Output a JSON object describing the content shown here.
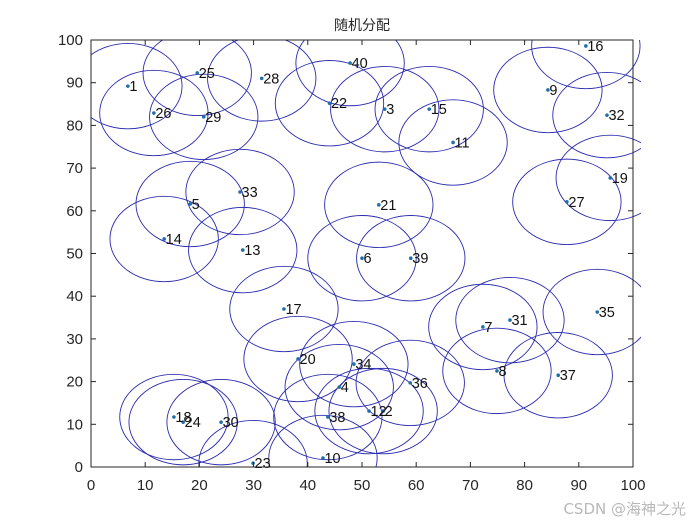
{
  "chart_data": {
    "type": "scatter",
    "title": "随机分配",
    "xlabel": "",
    "ylabel": "",
    "xlim": [
      0,
      100
    ],
    "ylim": [
      0,
      100
    ],
    "xticks": [
      0,
      10,
      20,
      30,
      40,
      50,
      60,
      70,
      80,
      90,
      100
    ],
    "yticks": [
      0,
      10,
      20,
      30,
      40,
      50,
      60,
      70,
      80,
      90,
      100
    ],
    "grid": false,
    "legend": null,
    "coverage_radius": 10,
    "marker_color": "#1f6fa8",
    "circle_color": "#2a2ab0",
    "axis_color": "#262626",
    "points": [
      {
        "id": 1,
        "x": 6.8,
        "y": 89.2
      },
      {
        "id": 2,
        "x": 53.9,
        "y": 13.1
      },
      {
        "id": 3,
        "x": 54.2,
        "y": 83.8
      },
      {
        "id": 4,
        "x": 45.8,
        "y": 18.7
      },
      {
        "id": 5,
        "x": 18.3,
        "y": 61.6
      },
      {
        "id": 6,
        "x": 50.0,
        "y": 48.9
      },
      {
        "id": 7,
        "x": 72.3,
        "y": 32.8
      },
      {
        "id": 8,
        "x": 74.9,
        "y": 22.5
      },
      {
        "id": 9,
        "x": 84.3,
        "y": 88.3
      },
      {
        "id": 10,
        "x": 42.8,
        "y": 2.1
      },
      {
        "id": 11,
        "x": 66.8,
        "y": 76.0
      },
      {
        "id": 12,
        "x": 51.3,
        "y": 13.1
      },
      {
        "id": 13,
        "x": 28.0,
        "y": 50.8
      },
      {
        "id": 14,
        "x": 13.5,
        "y": 53.4
      },
      {
        "id": 15,
        "x": 62.4,
        "y": 83.8
      },
      {
        "id": 16,
        "x": 91.3,
        "y": 98.6
      },
      {
        "id": 17,
        "x": 35.6,
        "y": 37.0
      },
      {
        "id": 18,
        "x": 15.3,
        "y": 11.7
      },
      {
        "id": 19,
        "x": 95.8,
        "y": 67.7
      },
      {
        "id": 20,
        "x": 38.2,
        "y": 25.3
      },
      {
        "id": 21,
        "x": 53.1,
        "y": 61.4
      },
      {
        "id": 22,
        "x": 44.0,
        "y": 85.2
      },
      {
        "id": 23,
        "x": 29.9,
        "y": 0.9
      },
      {
        "id": 24,
        "x": 17.0,
        "y": 10.5
      },
      {
        "id": 25,
        "x": 19.6,
        "y": 92.3
      },
      {
        "id": 26,
        "x": 11.6,
        "y": 82.9
      },
      {
        "id": 27,
        "x": 87.8,
        "y": 62.1
      },
      {
        "id": 28,
        "x": 31.5,
        "y": 91.0
      },
      {
        "id": 29,
        "x": 20.8,
        "y": 82.0
      },
      {
        "id": 30,
        "x": 24.0,
        "y": 10.5
      },
      {
        "id": 31,
        "x": 77.3,
        "y": 34.4
      },
      {
        "id": 32,
        "x": 95.2,
        "y": 82.4
      },
      {
        "id": 33,
        "x": 27.5,
        "y": 64.4
      },
      {
        "id": 34,
        "x": 48.5,
        "y": 24.1
      },
      {
        "id": 35,
        "x": 93.4,
        "y": 36.3
      },
      {
        "id": 36,
        "x": 58.9,
        "y": 19.7
      },
      {
        "id": 37,
        "x": 86.2,
        "y": 21.5
      },
      {
        "id": 38,
        "x": 43.7,
        "y": 11.7
      },
      {
        "id": 39,
        "x": 59.0,
        "y": 48.9
      },
      {
        "id": 40,
        "x": 47.8,
        "y": 94.6
      }
    ]
  },
  "watermark": "CSDN @海神之光"
}
